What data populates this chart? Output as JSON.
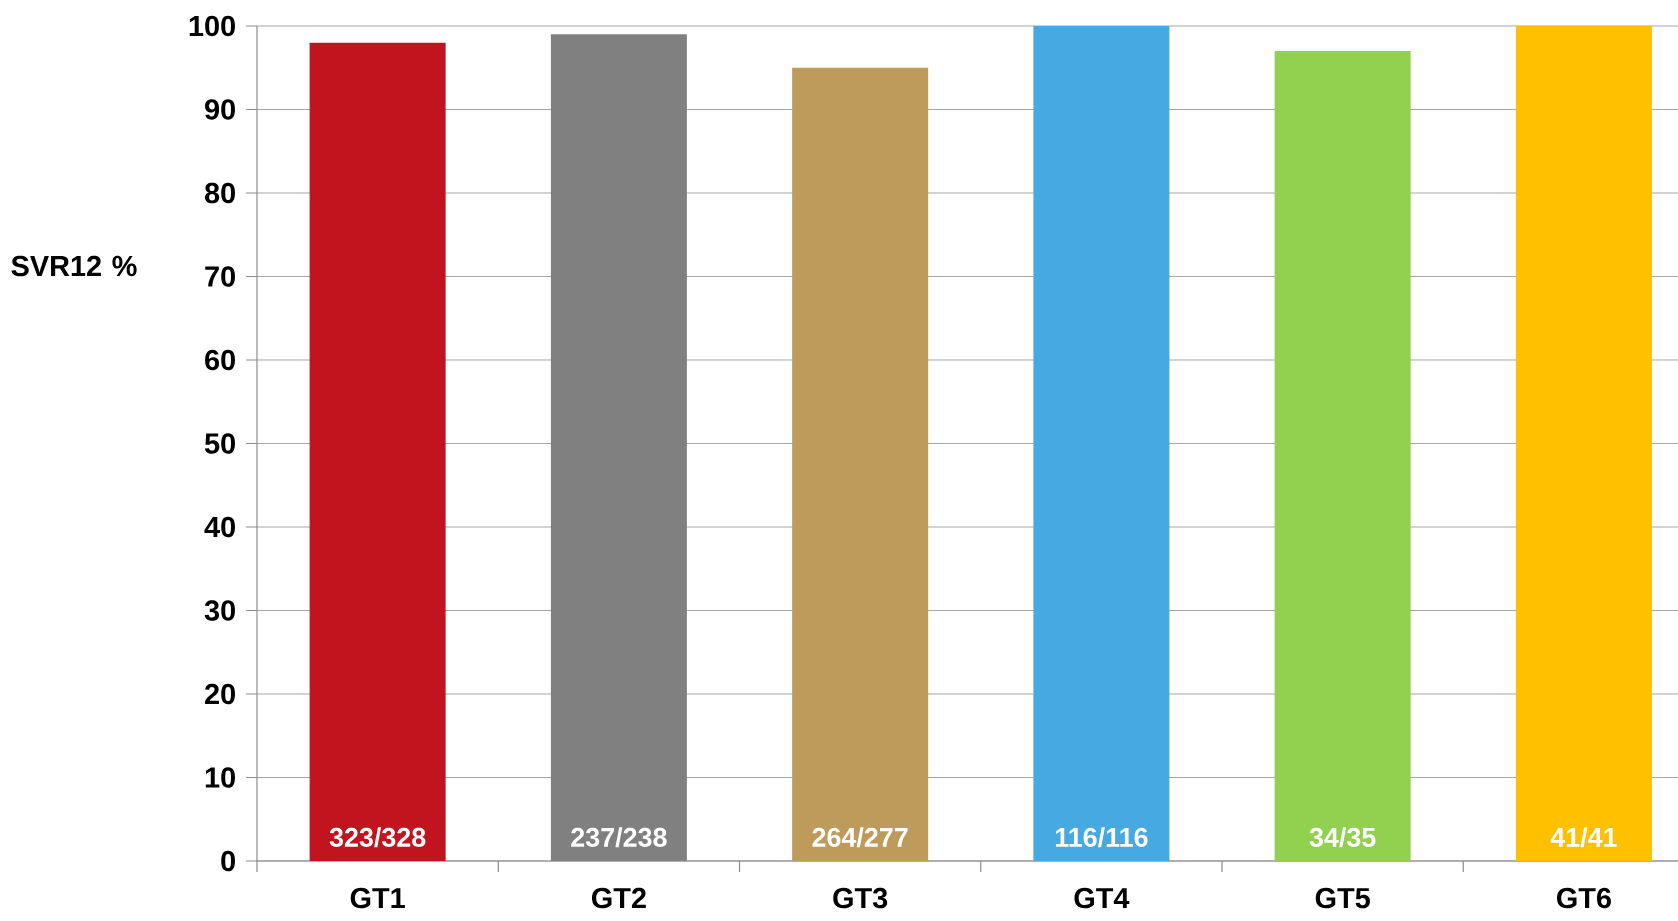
{
  "chart_data": {
    "type": "bar",
    "ylabel": "SVR12 %",
    "categories": [
      "GT1",
      "GT2",
      "GT3",
      "GT4",
      "GT5",
      "GT6"
    ],
    "values": [
      98,
      99,
      95,
      100,
      97,
      100
    ],
    "colors": [
      "#c1141e",
      "#808080",
      "#be9b5a",
      "#46a9e1",
      "#92d050",
      "#ffc000"
    ],
    "value_labels": [
      "323/328",
      "237/238",
      "264/277",
      "116/116",
      "34/35",
      "41/41"
    ],
    "ylim": [
      0,
      100
    ],
    "yticks": [
      0,
      10,
      20,
      30,
      40,
      50,
      60,
      70,
      80,
      90,
      100
    ],
    "grid": "y"
  }
}
